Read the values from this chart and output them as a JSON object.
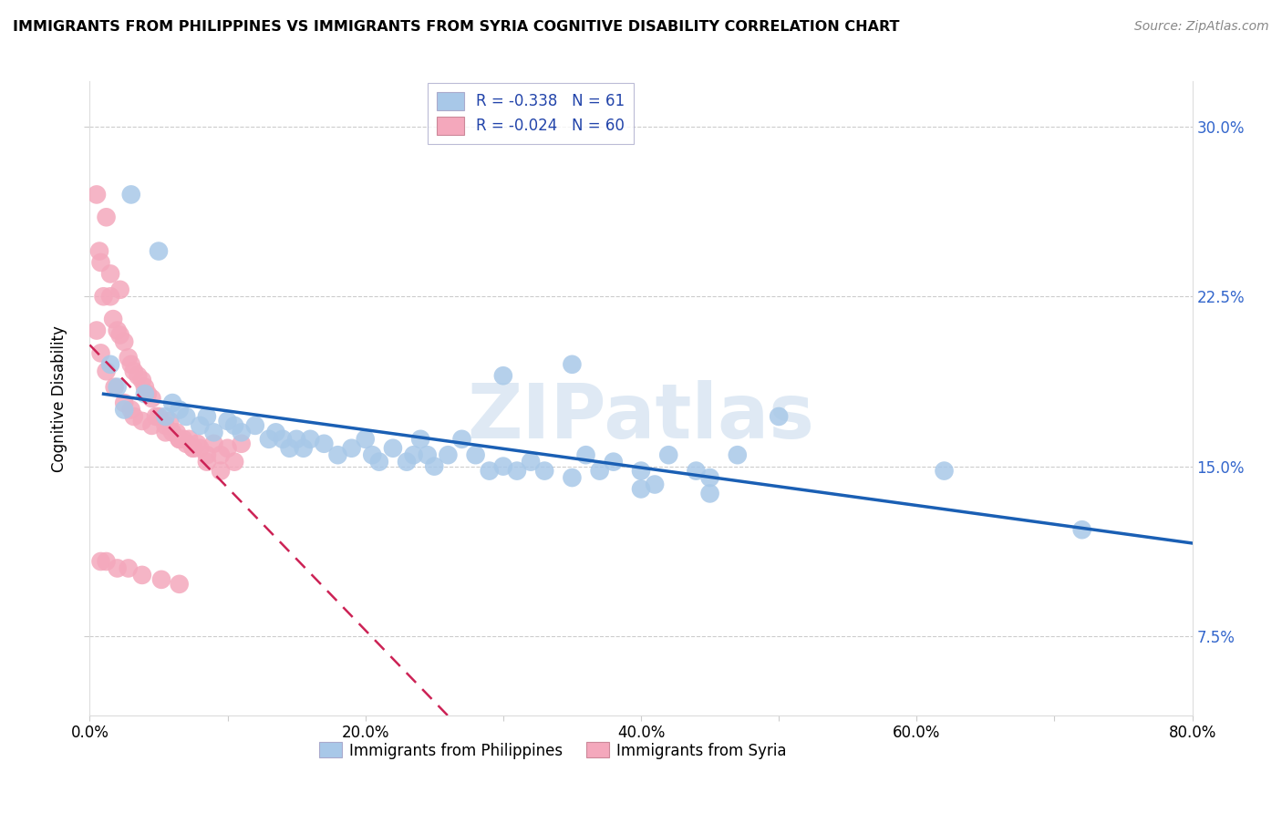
{
  "title": "IMMIGRANTS FROM PHILIPPINES VS IMMIGRANTS FROM SYRIA COGNITIVE DISABILITY CORRELATION CHART",
  "source": "Source: ZipAtlas.com",
  "ylabel": "Cognitive Disability",
  "xlabel": "",
  "xlim": [
    0.0,
    0.8
  ],
  "ylim": [
    0.04,
    0.32
  ],
  "yticks": [
    0.075,
    0.15,
    0.225,
    0.3
  ],
  "ytick_labels": [
    "7.5%",
    "15.0%",
    "22.5%",
    "30.0%"
  ],
  "xticks": [
    0.0,
    0.1,
    0.2,
    0.3,
    0.4,
    0.5,
    0.6,
    0.7,
    0.8
  ],
  "xtick_labels": [
    "0.0%",
    "",
    "20.0%",
    "",
    "40.0%",
    "",
    "60.0%",
    "",
    "80.0%"
  ],
  "blue_R": "-0.338",
  "blue_N": "61",
  "pink_R": "-0.024",
  "pink_N": "60",
  "blue_color": "#a8c8e8",
  "pink_color": "#f4a8bc",
  "blue_line_color": "#1a5fb4",
  "pink_line_color": "#cc2255",
  "watermark": "ZIPatlas",
  "blue_points_x": [
    0.03,
    0.05,
    0.015,
    0.02,
    0.025,
    0.04,
    0.055,
    0.06,
    0.065,
    0.07,
    0.08,
    0.085,
    0.09,
    0.1,
    0.105,
    0.11,
    0.12,
    0.13,
    0.135,
    0.14,
    0.145,
    0.15,
    0.155,
    0.16,
    0.17,
    0.18,
    0.19,
    0.2,
    0.205,
    0.21,
    0.22,
    0.23,
    0.235,
    0.24,
    0.245,
    0.25,
    0.26,
    0.27,
    0.28,
    0.29,
    0.3,
    0.31,
    0.32,
    0.33,
    0.35,
    0.36,
    0.37,
    0.38,
    0.4,
    0.41,
    0.42,
    0.44,
    0.45,
    0.47,
    0.3,
    0.35,
    0.4,
    0.45,
    0.5,
    0.62,
    0.72
  ],
  "blue_points_y": [
    0.27,
    0.245,
    0.195,
    0.185,
    0.175,
    0.182,
    0.172,
    0.178,
    0.175,
    0.172,
    0.168,
    0.172,
    0.165,
    0.17,
    0.168,
    0.165,
    0.168,
    0.162,
    0.165,
    0.162,
    0.158,
    0.162,
    0.158,
    0.162,
    0.16,
    0.155,
    0.158,
    0.162,
    0.155,
    0.152,
    0.158,
    0.152,
    0.155,
    0.162,
    0.155,
    0.15,
    0.155,
    0.162,
    0.155,
    0.148,
    0.15,
    0.148,
    0.152,
    0.148,
    0.145,
    0.155,
    0.148,
    0.152,
    0.148,
    0.142,
    0.155,
    0.148,
    0.145,
    0.155,
    0.19,
    0.195,
    0.14,
    0.138,
    0.172,
    0.148,
    0.122
  ],
  "pink_points_x": [
    0.005,
    0.007,
    0.008,
    0.01,
    0.012,
    0.015,
    0.017,
    0.02,
    0.022,
    0.025,
    0.028,
    0.03,
    0.032,
    0.035,
    0.038,
    0.04,
    0.042,
    0.045,
    0.005,
    0.008,
    0.012,
    0.018,
    0.025,
    0.03,
    0.038,
    0.045,
    0.055,
    0.065,
    0.075,
    0.085,
    0.095,
    0.015,
    0.022,
    0.032,
    0.048,
    0.05,
    0.055,
    0.058,
    0.06,
    0.063,
    0.065,
    0.068,
    0.07,
    0.072,
    0.075,
    0.078,
    0.08,
    0.085,
    0.09,
    0.095,
    0.1,
    0.105,
    0.11,
    0.008,
    0.012,
    0.02,
    0.028,
    0.038,
    0.052,
    0.065
  ],
  "pink_points_y": [
    0.27,
    0.245,
    0.24,
    0.225,
    0.26,
    0.225,
    0.215,
    0.21,
    0.208,
    0.205,
    0.198,
    0.195,
    0.192,
    0.19,
    0.188,
    0.185,
    0.182,
    0.18,
    0.21,
    0.2,
    0.192,
    0.185,
    0.178,
    0.175,
    0.17,
    0.168,
    0.165,
    0.162,
    0.158,
    0.152,
    0.148,
    0.235,
    0.228,
    0.172,
    0.172,
    0.172,
    0.168,
    0.17,
    0.165,
    0.165,
    0.162,
    0.162,
    0.16,
    0.162,
    0.158,
    0.16,
    0.158,
    0.155,
    0.16,
    0.155,
    0.158,
    0.152,
    0.16,
    0.108,
    0.108,
    0.105,
    0.105,
    0.102,
    0.1,
    0.098
  ]
}
